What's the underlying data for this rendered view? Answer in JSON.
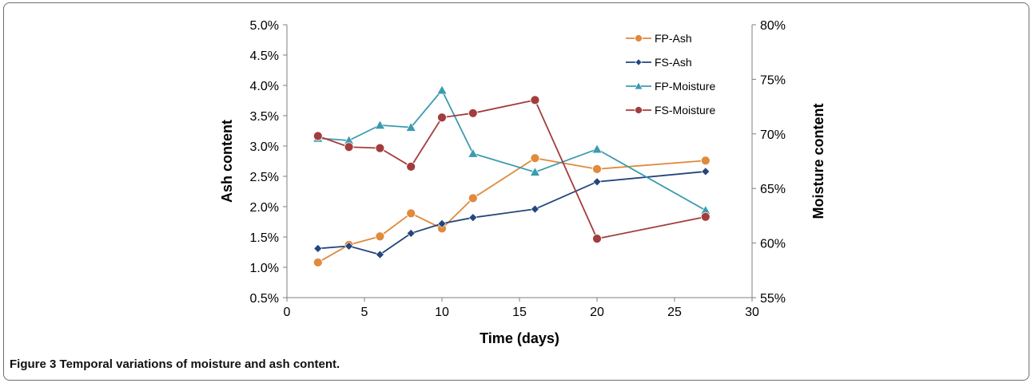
{
  "figure": {
    "caption_prefix": "Figure 3",
    "caption_text": "Temporal variations of moisture and ash content."
  },
  "chart_data": {
    "type": "line",
    "xlabel": "Time (days)",
    "ylabel_left": "Ash content",
    "ylabel_right": "Moisture content",
    "x_range": [
      0,
      30
    ],
    "x_ticks": [
      "0",
      "5",
      "10",
      "15",
      "20",
      "25",
      "30"
    ],
    "y_left_range": [
      0.5,
      5.0
    ],
    "y_left_ticks": [
      "0.5%",
      "1.0%",
      "1.5%",
      "2.0%",
      "2.5%",
      "3.0%",
      "3.5%",
      "4.0%",
      "4.5%",
      "5.0%"
    ],
    "y_right_range": [
      55,
      80
    ],
    "y_right_ticks": [
      "55%",
      "60%",
      "65%",
      "70%",
      "75%",
      "80%"
    ],
    "grid": false,
    "legend_position": "top-right",
    "series": [
      {
        "name": "FP-Ash",
        "axis": "left",
        "color": "#e08a3c",
        "marker": "circle",
        "x": [
          2,
          4,
          6,
          8,
          10,
          12,
          16,
          20,
          27
        ],
        "y": [
          1.08,
          1.37,
          1.51,
          1.89,
          1.64,
          2.14,
          2.8,
          2.62,
          2.76
        ]
      },
      {
        "name": "FS-Ash",
        "axis": "left",
        "color": "#23467d",
        "marker": "diamond",
        "x": [
          2,
          4,
          6,
          8,
          10,
          12,
          16,
          20,
          27
        ],
        "y": [
          1.31,
          1.35,
          1.21,
          1.56,
          1.72,
          1.82,
          1.96,
          2.41,
          2.58
        ]
      },
      {
        "name": "FP-Moisture",
        "axis": "right",
        "color": "#3b9bb0",
        "marker": "triangle",
        "x": [
          2,
          4,
          6,
          8,
          10,
          12,
          16,
          20,
          27
        ],
        "y": [
          69.6,
          69.4,
          70.8,
          70.6,
          74.0,
          68.2,
          66.5,
          68.6,
          63.0
        ]
      },
      {
        "name": "FS-Moisture",
        "axis": "right",
        "color": "#a33c3c",
        "marker": "circle",
        "x": [
          2,
          4,
          6,
          8,
          10,
          12,
          16,
          20,
          27
        ],
        "y": [
          69.8,
          68.8,
          68.7,
          67.0,
          71.5,
          71.9,
          73.1,
          60.4,
          62.4
        ]
      }
    ]
  }
}
